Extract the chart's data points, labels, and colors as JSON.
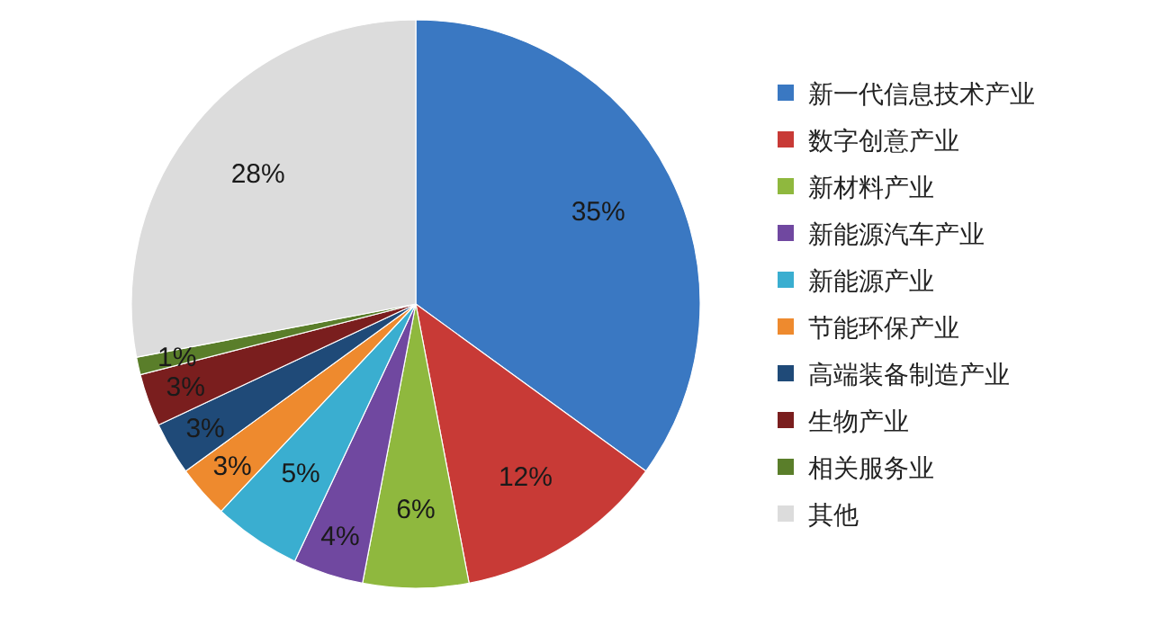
{
  "chart_data": {
    "type": "pie",
    "categories": [
      "新一代信息技术产业",
      "数字创意产业",
      "新材料产业",
      "新能源汽车产业",
      "新能源产业",
      "节能环保产业",
      "高端装备制造产业",
      "生物产业",
      "相关服务业",
      "其他"
    ],
    "values": [
      35,
      12,
      6,
      4,
      5,
      3,
      3,
      3,
      1,
      28
    ],
    "value_labels": [
      "35%",
      "12%",
      "6%",
      "4%",
      "5%",
      "3%",
      "3%",
      "3%",
      "1%",
      "28%"
    ],
    "colors": [
      "#3a78c2",
      "#c83a36",
      "#8fb83e",
      "#7048a0",
      "#3aaed0",
      "#ee8a2e",
      "#1f4a78",
      "#7a1e1e",
      "#5a7e2a",
      "#dcdcdc"
    ],
    "legend": "right"
  }
}
